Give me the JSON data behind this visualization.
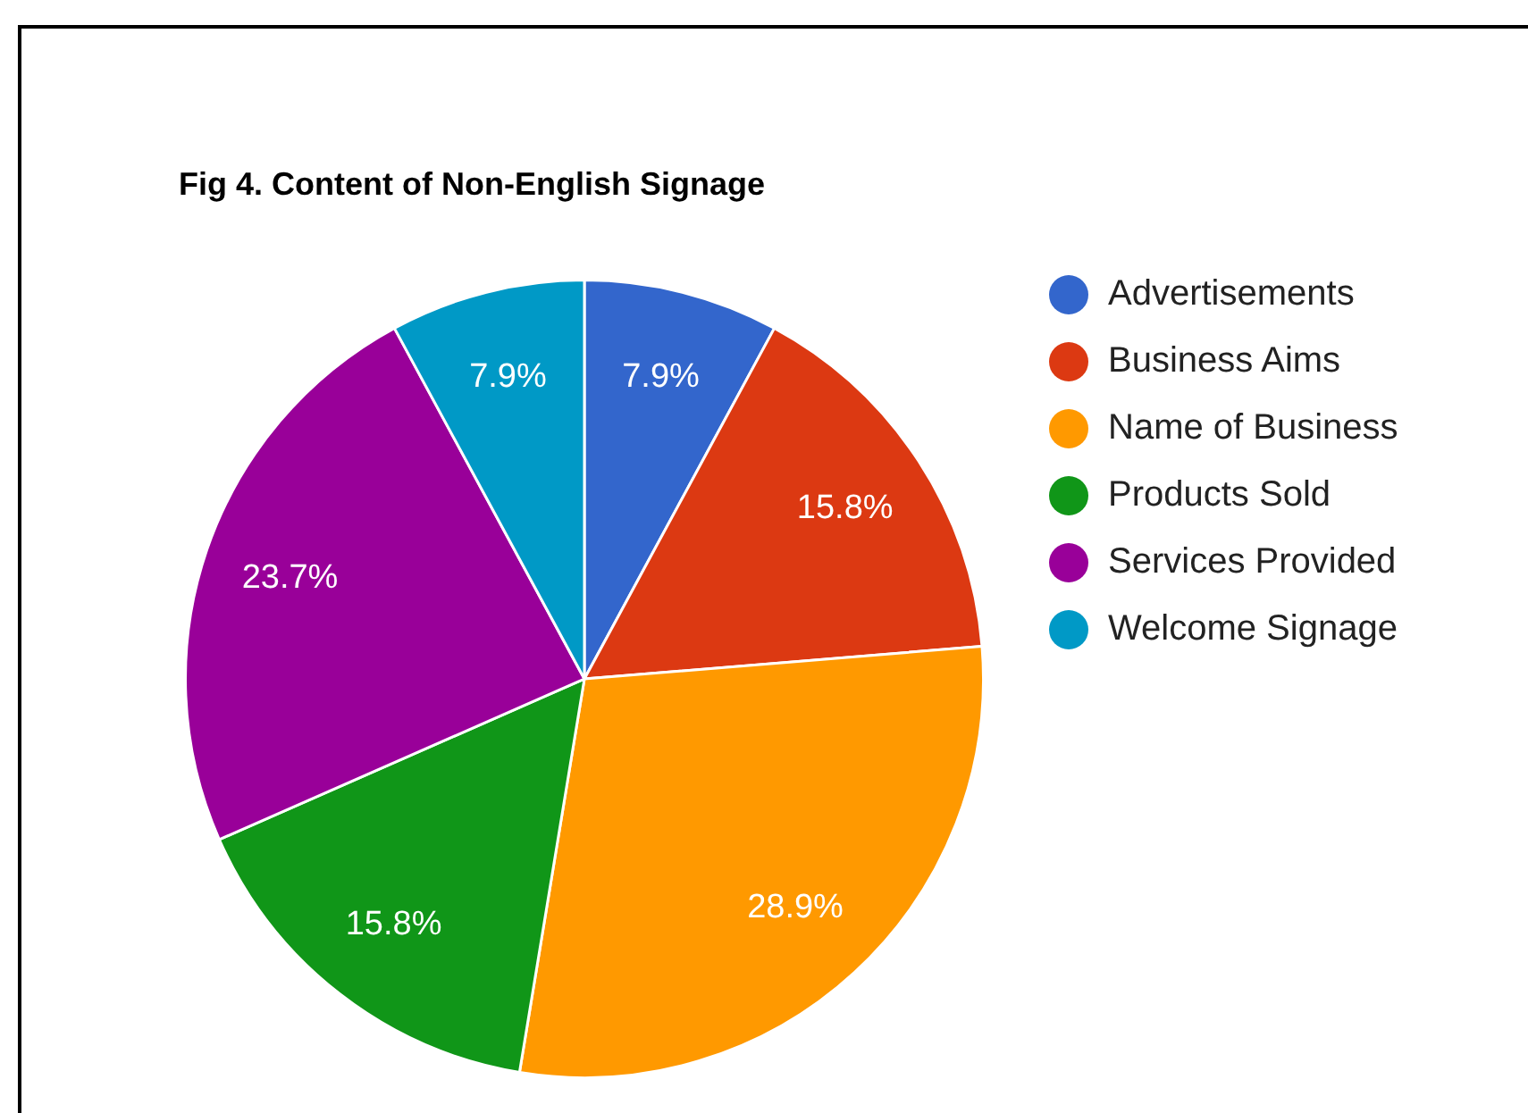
{
  "chart_data": {
    "type": "pie",
    "title": "Fig 4. Content of Non-English Signage",
    "categories": [
      "Advertisements",
      "Business Aims",
      "Name of Business",
      "Products Sold",
      "Services Provided",
      "Welcome Signage"
    ],
    "values": [
      7.9,
      15.8,
      28.9,
      15.8,
      23.7,
      7.9
    ],
    "value_labels": [
      "7.9%",
      "15.8%",
      "28.9%",
      "15.8%",
      "23.7%",
      "7.9%"
    ],
    "colors": [
      "#3366cc",
      "#dc3912",
      "#ff9900",
      "#109618",
      "#990099",
      "#0099c6"
    ],
    "legend": "right"
  }
}
